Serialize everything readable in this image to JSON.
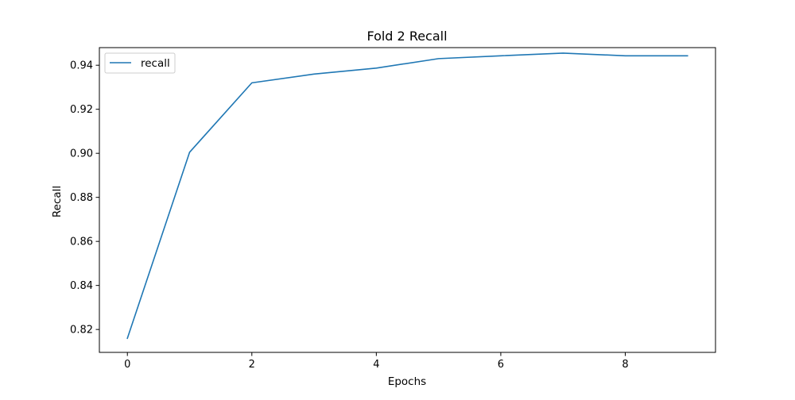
{
  "chart_data": {
    "type": "line",
    "title": "Fold 2 Recall",
    "xlabel": "Epochs",
    "ylabel": "Recall",
    "x": [
      0,
      1,
      2,
      3,
      4,
      5,
      6,
      7,
      8,
      9
    ],
    "series": [
      {
        "name": "recall",
        "color": "#1f77b4",
        "values": [
          0.816,
          0.9005,
          0.932,
          0.936,
          0.9387,
          0.943,
          0.9443,
          0.9455,
          0.9443,
          0.9443
        ]
      }
    ],
    "xlim": [
      -0.45,
      9.45
    ],
    "ylim": [
      0.8096,
      0.948
    ],
    "xticks": [
      0,
      2,
      4,
      6,
      8
    ],
    "yticks": [
      0.82,
      0.84,
      0.86,
      0.88,
      0.9,
      0.92,
      0.94
    ],
    "xtick_labels": [
      "0",
      "2",
      "4",
      "6",
      "8"
    ],
    "ytick_labels": [
      "0.82",
      "0.84",
      "0.86",
      "0.88",
      "0.90",
      "0.92",
      "0.94"
    ],
    "grid": false,
    "legend_position": "top-left"
  }
}
